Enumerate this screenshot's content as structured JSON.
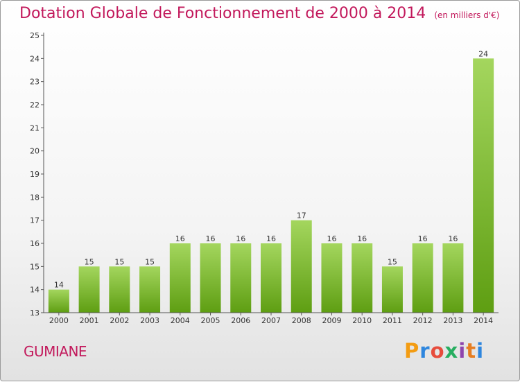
{
  "chart_data": {
    "type": "bar",
    "title": "Dotation Globale de Fonctionnement de 2000 à 2014",
    "unit": "(en milliers d'€)",
    "categories": [
      "2000",
      "2001",
      "2002",
      "2003",
      "2004",
      "2005",
      "2006",
      "2007",
      "2008",
      "2009",
      "2010",
      "2011",
      "2012",
      "2013",
      "2014"
    ],
    "values": [
      14,
      15,
      15,
      15,
      16,
      16,
      16,
      16,
      17,
      16,
      16,
      15,
      16,
      16,
      24
    ],
    "ylim": [
      13,
      25
    ],
    "yticks": [
      "13",
      "14",
      "15",
      "16",
      "17",
      "18",
      "19",
      "20",
      "21",
      "22",
      "23",
      "24",
      "25"
    ],
    "xlabel": "",
    "ylabel": "",
    "grid": false
  },
  "commune": "GUMIANE",
  "brand": {
    "letters": [
      "P",
      "r",
      "o",
      "x",
      "i",
      "t",
      "i"
    ],
    "colors": [
      "#f39c12",
      "#2e86de",
      "#e74c3c",
      "#27ae60",
      "#8e44ad",
      "#e67e22",
      "#2e86de"
    ]
  },
  "colors": {
    "bar_light": "#a4d65e",
    "bar_dark": "#5e9e12",
    "title": "#c2185b"
  }
}
